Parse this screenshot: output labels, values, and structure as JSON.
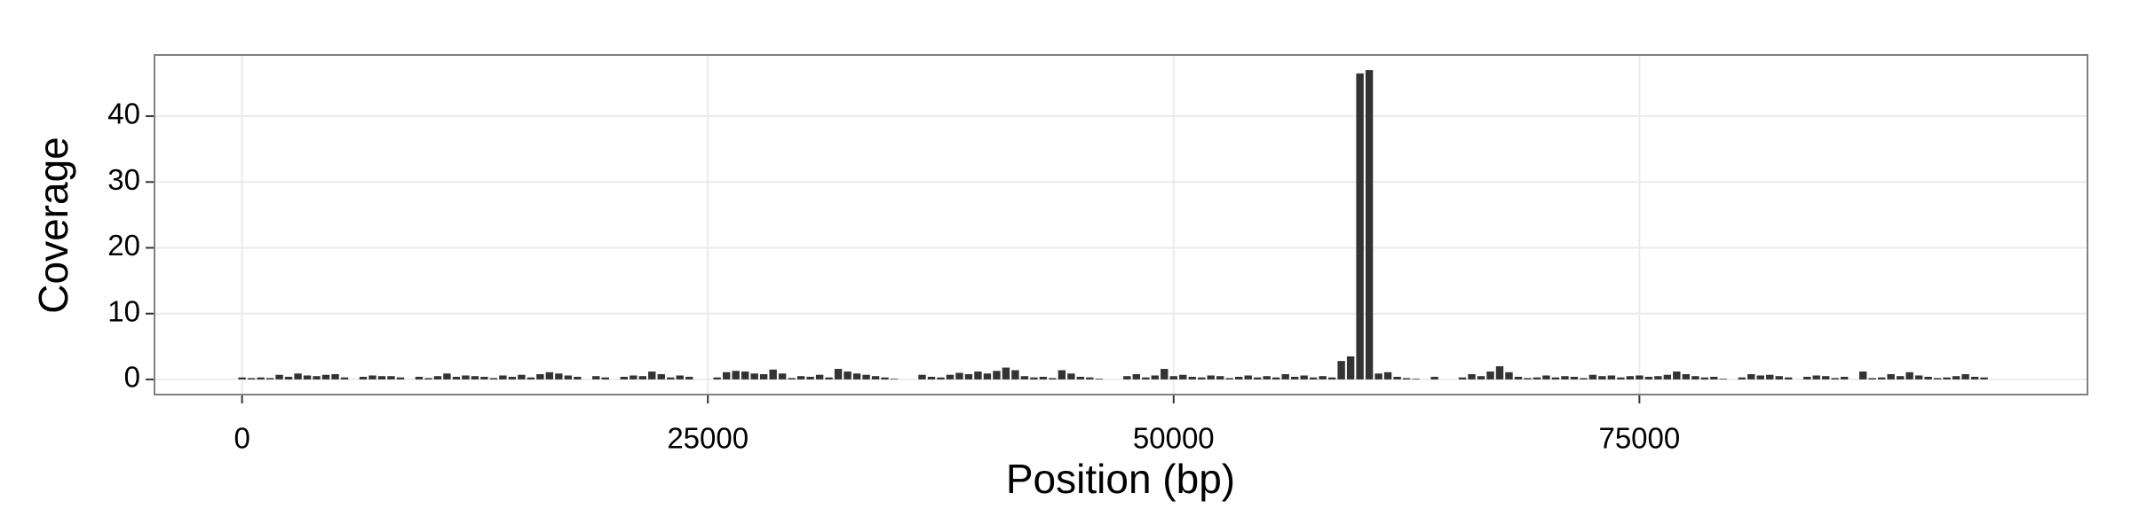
{
  "chart_data": {
    "type": "bar",
    "xlabel": "Position (bp)",
    "ylabel": "Coverage",
    "color": "#333333",
    "grid": true,
    "xlim": [
      -4700,
      99050
    ],
    "xticks": [
      0,
      25000,
      50000,
      75000
    ],
    "ylim": [
      -2.3,
      49.3
    ],
    "yticks": [
      0,
      10,
      20,
      30,
      40
    ],
    "x": [
      0,
      500,
      1000,
      1500,
      2000,
      2500,
      3000,
      3500,
      4000,
      4500,
      5000,
      5500,
      6000,
      6500,
      7000,
      7500,
      8000,
      8500,
      9000,
      9500,
      10000,
      10500,
      11000,
      11500,
      12000,
      12500,
      13000,
      13500,
      14000,
      14500,
      15000,
      15500,
      16000,
      16500,
      17000,
      17500,
      18000,
      18500,
      19000,
      19500,
      20000,
      20500,
      21000,
      21500,
      22000,
      22500,
      23000,
      23500,
      24000,
      24500,
      25000,
      25500,
      26000,
      26500,
      27000,
      27500,
      28000,
      28500,
      29000,
      29500,
      30000,
      30500,
      31000,
      31500,
      32000,
      32500,
      33000,
      33500,
      34000,
      34500,
      35000,
      35500,
      36000,
      36500,
      37000,
      37500,
      38000,
      38500,
      39000,
      39500,
      40000,
      40500,
      41000,
      41500,
      42000,
      42500,
      43000,
      43500,
      44000,
      44500,
      45000,
      45500,
      46000,
      46500,
      47000,
      47500,
      48000,
      48500,
      49000,
      49500,
      50000,
      50500,
      51000,
      51500,
      52000,
      52500,
      53000,
      53500,
      54000,
      54500,
      55000,
      55500,
      56000,
      56500,
      57000,
      57500,
      58000,
      58500,
      59000,
      59500,
      60000,
      60500,
      61000,
      61500,
      62000,
      62500,
      63000,
      63500,
      64000,
      64500,
      65000,
      65500,
      66000,
      66500,
      67000,
      67500,
      68000,
      68500,
      69000,
      69500,
      70000,
      70500,
      71000,
      71500,
      72000,
      72500,
      73000,
      73500,
      74000,
      74500,
      75000,
      75500,
      76000,
      76500,
      77000,
      77500,
      78000,
      78500,
      79000,
      79500,
      80000,
      80500,
      81000,
      81500,
      82000,
      82500,
      83000,
      83500,
      84000,
      84500,
      85000,
      85500,
      86000,
      86500,
      87000,
      87500,
      88000,
      88500,
      89000,
      89500,
      90000,
      90500,
      91000,
      91500,
      92000,
      92500,
      93000,
      93500,
      94000,
      94500
    ],
    "values": [
      0.3,
      0.2,
      0.3,
      0.2,
      0.7,
      0.4,
      0.9,
      0.6,
      0.5,
      0.7,
      0.8,
      0.3,
      0,
      0.4,
      0.6,
      0.5,
      0.5,
      0.3,
      0,
      0.4,
      0.2,
      0.5,
      0.9,
      0.4,
      0.6,
      0.5,
      0.4,
      0.2,
      0.6,
      0.4,
      0.7,
      0.3,
      0.8,
      1.1,
      0.9,
      0.6,
      0.4,
      0,
      0.5,
      0.3,
      0,
      0.4,
      0.6,
      0.5,
      1.2,
      0.8,
      0.3,
      0.6,
      0.4,
      0,
      0,
      0.3,
      1.1,
      1.3,
      1.2,
      0.9,
      0.8,
      1.5,
      0.9,
      0.2,
      0.5,
      0.4,
      0.7,
      0.3,
      1.6,
      1.2,
      0.9,
      0.7,
      0.5,
      0.3,
      0.1,
      0,
      0,
      0.7,
      0.4,
      0.3,
      0.7,
      1.0,
      0.8,
      1.2,
      0.9,
      1.3,
      1.8,
      1.4,
      0.5,
      0.3,
      0.4,
      0.2,
      1.4,
      0.9,
      0.4,
      0.3,
      0.1,
      0,
      0,
      0.5,
      0.8,
      0.3,
      0.6,
      1.6,
      0.5,
      0.7,
      0.4,
      0.3,
      0.6,
      0.5,
      0.2,
      0.4,
      0.6,
      0.3,
      0.5,
      0.3,
      0.8,
      0.4,
      0.6,
      0.3,
      0.5,
      0.3,
      2.8,
      3.5,
      46.5,
      47.0,
      0.9,
      1.1,
      0.4,
      0.2,
      0.1,
      0,
      0.4,
      0,
      0,
      0.3,
      0.8,
      0.5,
      1.2,
      2.0,
      1.1,
      0.4,
      0.2,
      0.3,
      0.6,
      0.3,
      0.5,
      0.4,
      0.2,
      0.7,
      0.5,
      0.6,
      0.3,
      0.5,
      0.6,
      0.4,
      0.5,
      0.7,
      1.2,
      0.8,
      0.5,
      0.3,
      0.4,
      0.1,
      0,
      0.3,
      0.8,
      0.6,
      0.7,
      0.5,
      0.3,
      0,
      0.4,
      0.6,
      0.5,
      0.2,
      0.4,
      0,
      1.2,
      0.2,
      0.3,
      0.8,
      0.5,
      1.1,
      0.6,
      0.4,
      0.2,
      0.3,
      0.5,
      0.8,
      0.4,
      0.3,
      0,
      0
    ]
  }
}
